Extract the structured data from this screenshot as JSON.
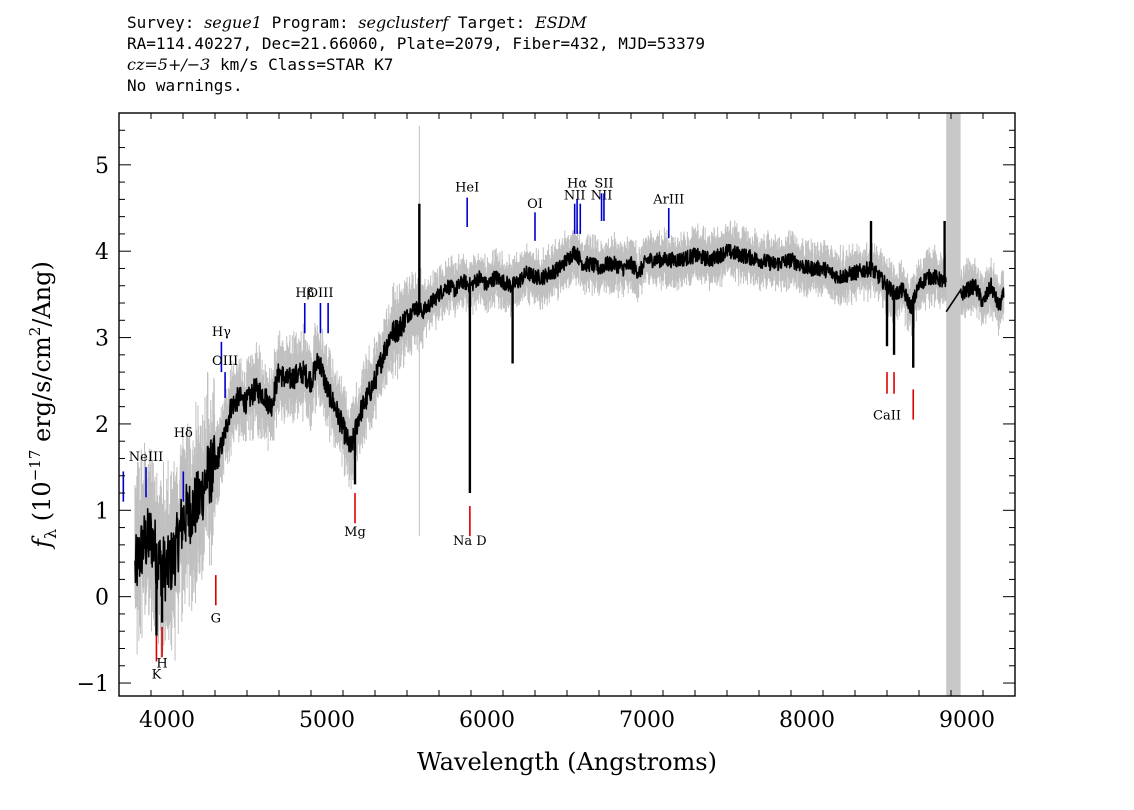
{
  "header": {
    "line1": {
      "survey_label": "Survey: ",
      "survey": "segue1",
      "program_label": " Program: ",
      "program": "segclusterf",
      "target_label": " Target: ",
      "target": "ESDM"
    },
    "line2": "RA=114.40227, Dec=21.66060, Plate=2079, Fiber=432, MJD=53379",
    "line3": {
      "cz": "cz=5+/−3",
      "rest": " km/s Class=STAR K7"
    },
    "line4": "No warnings."
  },
  "chart_data": {
    "type": "line",
    "title": "",
    "xlabel": "Wavelength (Angstroms)",
    "ylabel": "f_λ (10^-17 erg/s/cm^2/Ang)",
    "xlim": [
      3700,
      9300
    ],
    "ylim": [
      -1.15,
      5.6
    ],
    "xticks": [
      4000,
      5000,
      6000,
      7000,
      8000,
      9000
    ],
    "yticks": [
      -1,
      0,
      1,
      2,
      3,
      4,
      5
    ],
    "colors": {
      "flux": "#000000",
      "error": "#c0c0c0",
      "emission": "#0000cc",
      "absorption": "#dd0000",
      "masked_region": "#c8c8c8"
    },
    "masked_region": [
      8870,
      8960
    ],
    "series": [
      {
        "name": "flux",
        "x": [
          3800,
          3850,
          3900,
          3950,
          4000,
          4050,
          4100,
          4150,
          4200,
          4250,
          4300,
          4350,
          4400,
          4450,
          4500,
          4550,
          4600,
          4650,
          4700,
          4750,
          4800,
          4850,
          4900,
          4950,
          5000,
          5050,
          5100,
          5150,
          5200,
          5250,
          5300,
          5350,
          5400,
          5450,
          5500,
          5550,
          5600,
          5650,
          5700,
          5750,
          5800,
          5850,
          5900,
          5950,
          6000,
          6050,
          6100,
          6150,
          6200,
          6250,
          6300,
          6350,
          6400,
          6450,
          6500,
          6550,
          6600,
          6650,
          6700,
          6750,
          6800,
          6850,
          6900,
          6950,
          7000,
          7100,
          7200,
          7300,
          7400,
          7500,
          7600,
          7700,
          7800,
          7900,
          8000,
          8100,
          8200,
          8300,
          8400,
          8450,
          8500,
          8550,
          8600,
          8650,
          8700,
          8750,
          8800,
          8850,
          8870,
          8960,
          9000,
          9050,
          9100,
          9150,
          9200,
          9230
        ],
        "y": [
          0.3,
          0.6,
          0.7,
          0.4,
          0.3,
          0.5,
          0.9,
          1.0,
          1.1,
          1.4,
          1.5,
          1.8,
          2.2,
          2.3,
          2.25,
          2.4,
          2.35,
          2.2,
          2.6,
          2.5,
          2.55,
          2.6,
          2.5,
          2.75,
          2.4,
          2.2,
          1.95,
          1.7,
          2.1,
          2.3,
          2.5,
          2.8,
          3.05,
          3.1,
          3.25,
          3.35,
          3.3,
          3.4,
          3.5,
          3.6,
          3.55,
          3.65,
          3.6,
          3.7,
          3.6,
          3.7,
          3.65,
          3.6,
          3.65,
          3.75,
          3.7,
          3.7,
          3.75,
          3.8,
          3.9,
          4.0,
          3.85,
          3.85,
          3.8,
          3.85,
          3.85,
          3.8,
          3.85,
          3.75,
          3.9,
          3.9,
          3.9,
          3.95,
          3.9,
          4.0,
          3.95,
          3.9,
          3.85,
          3.9,
          3.8,
          3.8,
          3.7,
          3.75,
          3.8,
          3.7,
          3.6,
          3.5,
          3.55,
          3.35,
          3.6,
          3.7,
          3.7,
          3.65,
          3.6,
          3.5,
          3.55,
          3.6,
          3.4,
          3.6,
          3.35,
          3.5
        ]
      }
    ],
    "dips": [
      {
        "x": 3934,
        "y": -0.45
      },
      {
        "x": 3969,
        "y": -0.3
      },
      {
        "x": 5175,
        "y": 1.3
      },
      {
        "x": 5893,
        "y": 1.2
      },
      {
        "x": 6160,
        "y": 2.7
      },
      {
        "x": 8500,
        "y": 2.9
      },
      {
        "x": 8544,
        "y": 2.8
      },
      {
        "x": 8664,
        "y": 2.65
      }
    ],
    "spikes": [
      {
        "x": 5577,
        "y": 4.55
      },
      {
        "x": 8400,
        "y": 4.35
      },
      {
        "x": 8860,
        "y": 4.35
      }
    ],
    "emission_lines": [
      {
        "label": "",
        "x": 3727,
        "y1": 1.1,
        "y2": 1.45,
        "label_y": 1.52
      },
      {
        "label": "NeIII",
        "x": 3869,
        "y1": 1.15,
        "y2": 1.5,
        "label_y": 1.57
      },
      {
        "label": "Hδ",
        "x": 4102,
        "y1": 1.1,
        "y2": 1.45,
        "label_y": 1.85
      },
      {
        "label": "Hγ",
        "x": 4340,
        "y1": 2.6,
        "y2": 2.95,
        "label_y": 3.02
      },
      {
        "label": "OIII",
        "x": 4363,
        "y1": 2.3,
        "y2": 2.6,
        "label_y": 2.68
      },
      {
        "label": "Hβ",
        "x": 4861,
        "y1": 3.05,
        "y2": 3.4,
        "label_y": 3.47
      },
      {
        "label": "OIII",
        "x": 4959,
        "y1": 3.05,
        "y2": 3.4,
        "label_y": 3.47
      },
      {
        "label": "",
        "x": 5007,
        "y1": 3.05,
        "y2": 3.4,
        "label_y": 3.47
      },
      {
        "label": "HeI",
        "x": 5876,
        "y1": 4.28,
        "y2": 4.62,
        "label_y": 4.69
      },
      {
        "label": "OI",
        "x": 6300,
        "y1": 4.12,
        "y2": 4.45,
        "label_y": 4.5
      },
      {
        "label": "NII",
        "x": 6548,
        "y1": 4.2,
        "y2": 4.55,
        "label_y": 4.6
      },
      {
        "label": "Hα",
        "x": 6563,
        "y1": 4.2,
        "y2": 4.6,
        "label_y": 4.74
      },
      {
        "label": "",
        "x": 6583,
        "y1": 4.2,
        "y2": 4.55,
        "label_y": 4.6
      },
      {
        "label": "NII",
        "x": 6716,
        "y1": 4.35,
        "y2": 4.67,
        "label_y": 4.6
      },
      {
        "label": "SII",
        "x": 6731,
        "y1": 4.35,
        "y2": 4.67,
        "label_y": 4.74
      },
      {
        "label": "ArIII",
        "x": 7136,
        "y1": 4.15,
        "y2": 4.5,
        "label_y": 4.55
      }
    ],
    "absorption_lines": [
      {
        "label": "K",
        "x": 3934,
        "y1": -0.75,
        "y2": -0.45,
        "label_y": -0.95
      },
      {
        "label": "H",
        "x": 3969,
        "y1": -0.7,
        "y2": -0.35,
        "label_y": -0.82
      },
      {
        "label": "G",
        "x": 4305,
        "y1": -0.1,
        "y2": 0.25,
        "label_y": -0.3
      },
      {
        "label": "Mg",
        "x": 5175,
        "y1": 0.85,
        "y2": 1.2,
        "label_y": 0.7
      },
      {
        "label": "Na D",
        "x": 5893,
        "y1": 0.7,
        "y2": 1.05,
        "label_y": 0.6
      },
      {
        "label": "CaII",
        "x": 8500,
        "y1": 2.35,
        "y2": 2.6,
        "label_y": 2.05
      },
      {
        "label": "",
        "x": 8544,
        "y1": 2.35,
        "y2": 2.6,
        "label_y": 2.05
      },
      {
        "label": "",
        "x": 8664,
        "y1": 2.05,
        "y2": 2.4,
        "label_y": 2.05
      }
    ]
  }
}
